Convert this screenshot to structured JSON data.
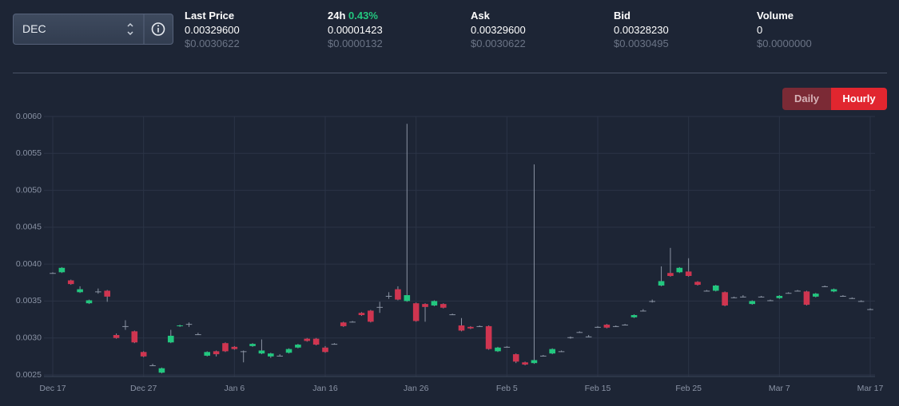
{
  "header": {
    "selector": "DEC",
    "stats": [
      {
        "label": "Last Price",
        "value": "0.00329600",
        "usd": "$0.0030622"
      },
      {
        "label": "24h",
        "change": "0.43%",
        "value": "0.00001423",
        "usd": "$0.0000132"
      },
      {
        "label": "Ask",
        "value": "0.00329600",
        "usd": "$0.0030622"
      },
      {
        "label": "Bid",
        "value": "0.00328230",
        "usd": "$0.0030495"
      },
      {
        "label": "Volume",
        "value": "0",
        "usd": "$0.0000000"
      }
    ]
  },
  "toggle": {
    "options": [
      "Daily",
      "Hourly"
    ],
    "active": "Hourly"
  },
  "chart_data": {
    "type": "candlestick",
    "categories": [
      "Dec 17",
      null,
      null,
      null,
      null,
      null,
      null,
      null,
      null,
      null,
      "Dec 27",
      null,
      null,
      null,
      null,
      null,
      null,
      null,
      null,
      null,
      "Jan 6",
      null,
      null,
      null,
      null,
      null,
      null,
      null,
      null,
      null,
      "Jan 16",
      null,
      null,
      null,
      null,
      null,
      null,
      null,
      null,
      null,
      "Jan 26",
      null,
      null,
      null,
      null,
      null,
      null,
      null,
      null,
      null,
      "Feb 5",
      null,
      null,
      null,
      null,
      null,
      null,
      null,
      null,
      null,
      "Feb 15",
      null,
      null,
      null,
      null,
      null,
      null,
      null,
      null,
      null,
      "Feb 25",
      null,
      null,
      null,
      null,
      null,
      null,
      null,
      null,
      null,
      "Mar 7",
      null,
      null,
      null,
      null,
      null,
      null,
      null,
      null,
      null,
      "Mar 17"
    ],
    "open": [
      0.00388,
      0.00389,
      0.00378,
      0.00362,
      0.00347,
      0.00363,
      0.00364,
      0.00304,
      0.00316,
      0.00309,
      0.00281,
      0.00263,
      0.00253,
      0.00294,
      0.00316,
      0.00319,
      0.00305,
      0.00276,
      0.00282,
      0.00293,
      0.00288,
      0.00282,
      0.00289,
      0.00279,
      0.00275,
      0.00276,
      0.0028,
      0.00287,
      0.00299,
      0.00299,
      0.00287,
      0.00292,
      0.00321,
      0.00322,
      0.00334,
      0.00337,
      0.00342,
      0.00357,
      0.00366,
      0.0035,
      0.00347,
      0.00346,
      0.00344,
      0.00346,
      0.00332,
      0.00317,
      0.00315,
      0.00316,
      0.00316,
      0.00282,
      0.00288,
      0.00278,
      0.00267,
      0.00266,
      0.00276,
      0.00279,
      0.00282,
      0.00301,
      0.00308,
      0.00302,
      0.00315,
      0.00318,
      0.00316,
      0.00318,
      0.00328,
      0.00337,
      0.0035,
      0.00371,
      0.00388,
      0.00389,
      0.0039,
      0.00376,
      0.00364,
      0.00364,
      0.00362,
      0.00355,
      0.00356,
      0.00346,
      0.00356,
      0.00351,
      0.00354,
      0.00361,
      0.00364,
      0.00363,
      0.00356,
      0.0037,
      0.00363,
      0.00357,
      0.00354,
      0.0035,
      0.00339
    ],
    "high": [
      0.00389,
      0.00396,
      0.00379,
      0.0037,
      0.00352,
      0.00367,
      0.00365,
      0.00306,
      0.00324,
      0.0031,
      0.00282,
      0.00265,
      0.0026,
      0.00311,
      0.00318,
      0.00321,
      0.00307,
      0.00282,
      0.00283,
      0.00294,
      0.00289,
      0.00283,
      0.00293,
      0.00298,
      0.0028,
      0.00278,
      0.00286,
      0.00292,
      0.003,
      0.003,
      0.00289,
      0.00293,
      0.00322,
      0.00323,
      0.00335,
      0.00338,
      0.00349,
      0.00362,
      0.0037,
      0.0059,
      0.00348,
      0.00347,
      0.00351,
      0.00347,
      0.00333,
      0.00327,
      0.00316,
      0.00317,
      0.00317,
      0.00288,
      0.00289,
      0.00279,
      0.00268,
      0.00535,
      0.00277,
      0.00286,
      0.00283,
      0.00302,
      0.00309,
      0.00304,
      0.00316,
      0.00319,
      0.00317,
      0.00319,
      0.00332,
      0.00339,
      0.00352,
      0.00397,
      0.00422,
      0.00396,
      0.00408,
      0.00377,
      0.00365,
      0.00372,
      0.00363,
      0.00356,
      0.00358,
      0.00351,
      0.00357,
      0.00352,
      0.00358,
      0.00362,
      0.00365,
      0.00364,
      0.00361,
      0.00371,
      0.00367,
      0.00358,
      0.00355,
      0.00351,
      0.0034
    ],
    "low": [
      0.00387,
      0.00388,
      0.00372,
      0.00361,
      0.00346,
      0.0036,
      0.00349,
      0.00299,
      0.00311,
      0.00293,
      0.00274,
      0.00262,
      0.00252,
      0.00293,
      0.00315,
      0.00315,
      0.00304,
      0.00275,
      0.00275,
      0.00281,
      0.00284,
      0.00267,
      0.00288,
      0.00278,
      0.00273,
      0.00275,
      0.00279,
      0.00286,
      0.00295,
      0.0029,
      0.0028,
      0.00291,
      0.00315,
      0.00321,
      0.0033,
      0.00321,
      0.00334,
      0.00353,
      0.00351,
      0.00349,
      0.00322,
      0.00322,
      0.00343,
      0.0034,
      0.00331,
      0.00309,
      0.00312,
      0.00315,
      0.00284,
      0.00281,
      0.00287,
      0.00266,
      0.00263,
      0.00265,
      0.00275,
      0.00278,
      0.00281,
      0.00299,
      0.00307,
      0.00301,
      0.00314,
      0.00313,
      0.00315,
      0.00317,
      0.00327,
      0.00336,
      0.00348,
      0.0037,
      0.00383,
      0.00388,
      0.00383,
      0.00371,
      0.00363,
      0.00363,
      0.00343,
      0.00354,
      0.00355,
      0.00345,
      0.00355,
      0.0035,
      0.00353,
      0.0036,
      0.00363,
      0.00344,
      0.00355,
      0.00369,
      0.00362,
      0.00356,
      0.00353,
      0.00349,
      0.00338
    ],
    "close": [
      0.00388,
      0.00395,
      0.00373,
      0.00366,
      0.00351,
      0.00363,
      0.00356,
      0.003,
      0.00316,
      0.00294,
      0.00275,
      0.00263,
      0.00259,
      0.00303,
      0.00317,
      0.00319,
      0.00305,
      0.00281,
      0.00278,
      0.00282,
      0.00285,
      0.00282,
      0.00292,
      0.00283,
      0.00279,
      0.00276,
      0.00285,
      0.00291,
      0.00296,
      0.00291,
      0.00281,
      0.00292,
      0.00316,
      0.00322,
      0.00331,
      0.00322,
      0.00342,
      0.00357,
      0.00352,
      0.00358,
      0.00323,
      0.00342,
      0.0035,
      0.00341,
      0.00332,
      0.0031,
      0.00313,
      0.00316,
      0.00285,
      0.00287,
      0.00288,
      0.00268,
      0.00264,
      0.0027,
      0.00276,
      0.00285,
      0.00282,
      0.00301,
      0.00308,
      0.00302,
      0.00315,
      0.00314,
      0.00316,
      0.00318,
      0.00331,
      0.00337,
      0.0035,
      0.00377,
      0.00384,
      0.00395,
      0.00384,
      0.00372,
      0.00364,
      0.00371,
      0.00344,
      0.00355,
      0.00356,
      0.0035,
      0.00356,
      0.00351,
      0.00357,
      0.00361,
      0.00364,
      0.00345,
      0.0036,
      0.0037,
      0.00366,
      0.00357,
      0.00354,
      0.0035,
      0.00339
    ],
    "ylim": [
      0.0025,
      0.006
    ],
    "yticks": [
      0.0025,
      {
        "value": 0.003,
        "label": "0.0030"
      },
      0.0035,
      {
        "value": 0.004,
        "label": "0.0040"
      },
      0.0045,
      {
        "value": 0.005,
        "label": "0.0050"
      },
      0.0055,
      {
        "value": 0.006,
        "label": "0.0060"
      }
    ],
    "grid": true,
    "up_color": "#22c77f",
    "down_color": "#cf3550",
    "wick_color": "#8a93a3"
  }
}
